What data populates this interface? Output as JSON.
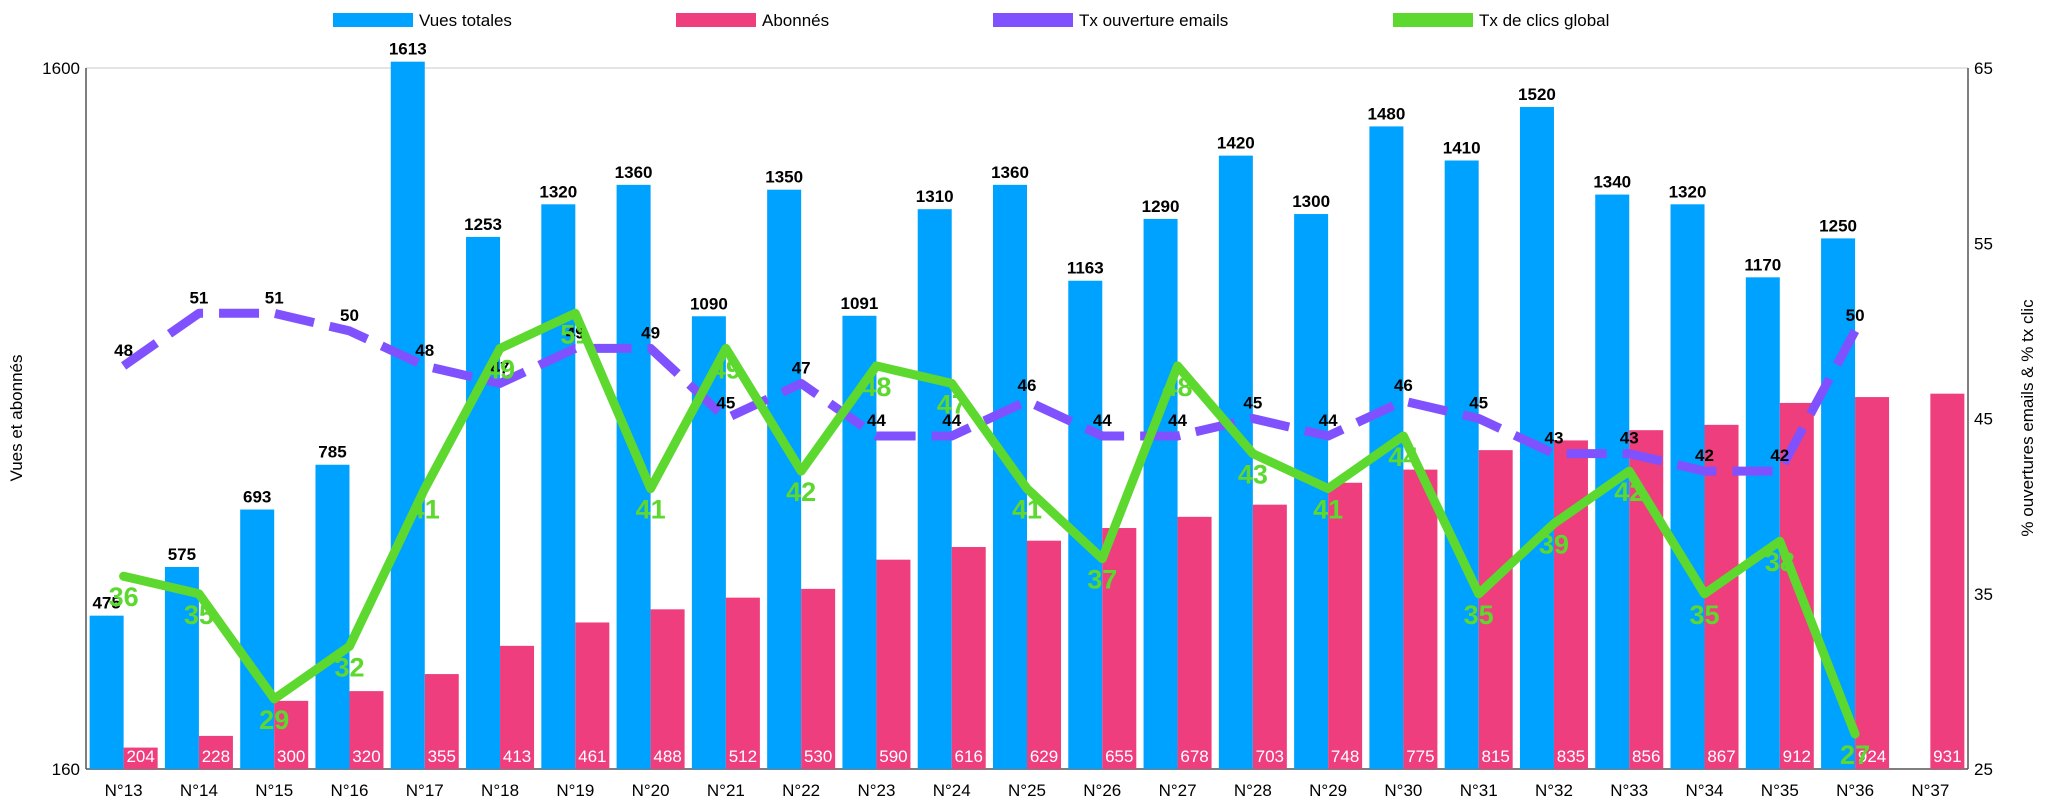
{
  "chart_data": {
    "type": "bar",
    "categories": [
      "N°13",
      "N°14",
      "N°15",
      "N°16",
      "N°17",
      "N°18",
      "N°19",
      "N°20",
      "N°21",
      "N°22",
      "N°23",
      "N°24",
      "N°25",
      "N°26",
      "N°27",
      "N°28",
      "N°29",
      "N°30",
      "N°31",
      "N°32",
      "N°33",
      "N°34",
      "N°35",
      "N°36",
      "N°37"
    ],
    "ylabel": "Vues et abonnés",
    "y2label": "% ouvertures emails & % tx clic",
    "ylim": [
      160,
      1600
    ],
    "y2lim": [
      25,
      65
    ],
    "y_ticks": [
      "160",
      "1600"
    ],
    "y2_ticks": [
      "25",
      "35",
      "45",
      "55",
      "65"
    ],
    "legend_position": "top",
    "series": [
      {
        "name": "Vues totales",
        "kind": "bar",
        "axis": "left",
        "color": "#00A2FF",
        "values": [
          475,
          575,
          693,
          785,
          1613,
          1253,
          1320,
          1360,
          1090,
          1350,
          1091,
          1310,
          1360,
          1163,
          1290,
          1420,
          1300,
          1480,
          1410,
          1520,
          1340,
          1320,
          1170,
          1250,
          null
        ],
        "labels": [
          "475",
          "575",
          "693",
          "785",
          "1613",
          "1253",
          "1320",
          "1360",
          "1090",
          "1350",
          "1091",
          "1310",
          "1360",
          "1163",
          "1290",
          "1420",
          "1300",
          "1480",
          "1410",
          "1520",
          "1340",
          "1320",
          "1170",
          "1250",
          ""
        ]
      },
      {
        "name": "Abonnés",
        "kind": "bar",
        "axis": "left",
        "color": "#EE3E7D",
        "values": [
          204,
          228,
          300,
          320,
          355,
          413,
          461,
          488,
          512,
          530,
          590,
          616,
          629,
          655,
          678,
          703,
          748,
          775,
          815,
          835,
          856,
          867,
          912,
          924,
          931
        ],
        "labels": [
          "204",
          "228",
          "300",
          "320",
          "355",
          "413",
          "461",
          "488",
          "512",
          "530",
          "590",
          "616",
          "629",
          "655",
          "678",
          "703",
          "748",
          "775",
          "815",
          "835",
          "856",
          "867",
          "912",
          "924",
          "931"
        ]
      },
      {
        "name": "Tx ouverture emails",
        "kind": "line",
        "dashed": true,
        "axis": "right",
        "color": "#8052FF",
        "values": [
          48,
          51,
          51,
          50,
          48,
          47,
          49,
          49,
          45,
          47,
          44,
          44,
          46,
          44,
          44,
          45,
          44,
          46,
          45,
          43,
          43,
          42,
          42,
          50,
          null
        ],
        "labels": [
          "48",
          "51",
          "51",
          "50",
          "48",
          "47",
          "49",
          "49",
          "45",
          "47",
          "44",
          "44",
          "46",
          "44",
          "44",
          "45",
          "44",
          "46",
          "45",
          "43",
          "43",
          "42",
          "42",
          "50",
          ""
        ]
      },
      {
        "name": "Tx de clics global",
        "kind": "line",
        "dashed": false,
        "axis": "right",
        "color": "#5DD82E",
        "values": [
          36,
          35,
          29,
          32,
          41,
          49,
          51,
          41,
          49,
          42,
          48,
          47,
          41,
          37,
          48,
          43,
          41,
          44,
          35,
          39,
          42,
          35,
          38,
          27,
          null
        ],
        "labels": [
          "36",
          "35",
          "29",
          "32",
          "41",
          "49",
          "51",
          "41",
          "49",
          "42",
          "48",
          "47",
          "41",
          "37",
          "48",
          "43",
          "41",
          "44",
          "35",
          "39",
          "42",
          "35",
          "38",
          "27",
          ""
        ]
      }
    ]
  }
}
